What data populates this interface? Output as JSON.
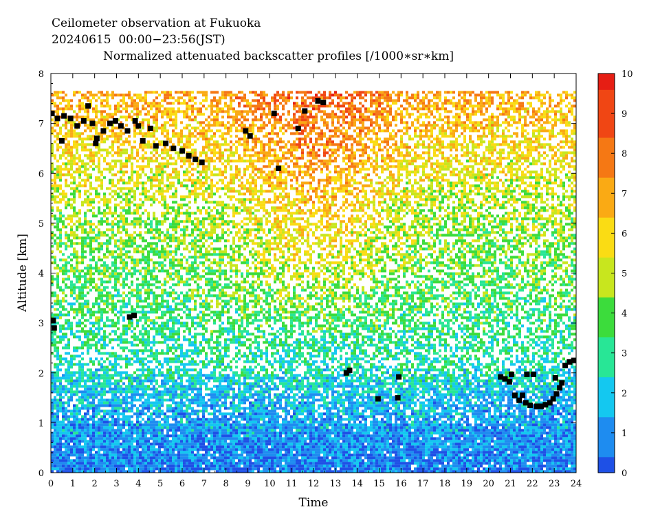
{
  "header": {
    "line1": "Ceilometer observation at Fukuoka",
    "line2": "20240615  00:00−23:56(JST)",
    "line3": "Normalized attenuated backscatter profiles [/1000∗sr∗km]"
  },
  "chart_data": {
    "type": "heatmap",
    "xlabel": "Time",
    "ylabel": "Altitude [km]",
    "xlim": [
      0,
      24
    ],
    "ylim": [
      0,
      8
    ],
    "x_ticks": [
      0,
      1,
      2,
      3,
      4,
      5,
      6,
      7,
      8,
      9,
      10,
      11,
      12,
      13,
      14,
      15,
      16,
      17,
      18,
      19,
      20,
      21,
      22,
      23,
      24
    ],
    "y_ticks": [
      0,
      1,
      2,
      3,
      4,
      5,
      6,
      7,
      8
    ],
    "colorbar": {
      "range": [
        0,
        10
      ],
      "ticks": [
        0,
        1,
        2,
        3,
        4,
        5,
        6,
        7,
        8,
        9,
        10
      ],
      "colors": [
        "#1e50e6",
        "#1e8cf0",
        "#14c8f0",
        "#28e696",
        "#3cdc3c",
        "#c8e61e",
        "#fadc14",
        "#faaa14",
        "#f57814",
        "#f04614",
        "#e61e14"
      ]
    },
    "data_top_km": 7.65,
    "profile_regimes": [
      {
        "altitude_km": 0.0,
        "level": 1.0
      },
      {
        "altitude_km": 0.6,
        "level": 1.3
      },
      {
        "altitude_km": 1.4,
        "level": 1.8
      },
      {
        "altitude_km": 2.2,
        "level": 2.8
      },
      {
        "altitude_km": 3.5,
        "level": 3.6
      },
      {
        "altitude_km": 5.0,
        "level": 4.5
      },
      {
        "altitude_km": 7.6,
        "level": 7.0
      }
    ],
    "cloud_base_points": [
      {
        "time": 0.05,
        "alt": 7.2
      },
      {
        "time": 0.3,
        "alt": 7.1
      },
      {
        "time": 0.6,
        "alt": 7.15
      },
      {
        "time": 0.9,
        "alt": 7.1
      },
      {
        "time": 1.2,
        "alt": 6.95
      },
      {
        "time": 1.5,
        "alt": 7.05
      },
      {
        "time": 1.7,
        "alt": 7.35
      },
      {
        "time": 1.9,
        "alt": 7.0
      },
      {
        "time": 2.1,
        "alt": 6.7
      },
      {
        "time": 2.4,
        "alt": 6.85
      },
      {
        "time": 2.7,
        "alt": 7.0
      },
      {
        "time": 2.95,
        "alt": 7.05
      },
      {
        "time": 3.2,
        "alt": 6.95
      },
      {
        "time": 3.5,
        "alt": 6.85
      },
      {
        "time": 3.85,
        "alt": 7.05
      },
      {
        "time": 4.0,
        "alt": 6.95
      },
      {
        "time": 4.2,
        "alt": 6.65
      },
      {
        "time": 4.55,
        "alt": 6.9
      },
      {
        "time": 4.8,
        "alt": 6.55
      },
      {
        "time": 5.25,
        "alt": 6.6
      },
      {
        "time": 5.6,
        "alt": 6.5
      },
      {
        "time": 6.0,
        "alt": 6.45
      },
      {
        "time": 6.3,
        "alt": 6.35
      },
      {
        "time": 6.6,
        "alt": 6.28
      },
      {
        "time": 6.9,
        "alt": 6.22
      },
      {
        "time": 0.5,
        "alt": 6.65
      },
      {
        "time": 2.05,
        "alt": 6.6
      },
      {
        "time": 8.9,
        "alt": 6.85
      },
      {
        "time": 9.1,
        "alt": 6.75
      },
      {
        "time": 10.2,
        "alt": 7.2
      },
      {
        "time": 10.4,
        "alt": 6.1
      },
      {
        "time": 11.3,
        "alt": 6.9
      },
      {
        "time": 11.6,
        "alt": 7.25
      },
      {
        "time": 12.2,
        "alt": 7.45
      },
      {
        "time": 12.45,
        "alt": 7.42
      },
      {
        "time": 0.1,
        "alt": 3.05
      },
      {
        "time": 0.15,
        "alt": 2.9
      },
      {
        "time": 3.6,
        "alt": 3.12
      },
      {
        "time": 3.8,
        "alt": 3.15
      },
      {
        "time": 13.5,
        "alt": 2.0
      },
      {
        "time": 13.65,
        "alt": 2.05
      },
      {
        "time": 14.95,
        "alt": 1.48
      },
      {
        "time": 15.85,
        "alt": 1.5
      },
      {
        "time": 15.9,
        "alt": 1.92
      },
      {
        "time": 20.55,
        "alt": 1.92
      },
      {
        "time": 20.75,
        "alt": 1.88
      },
      {
        "time": 20.95,
        "alt": 1.82
      },
      {
        "time": 21.05,
        "alt": 1.97
      },
      {
        "time": 21.2,
        "alt": 1.55
      },
      {
        "time": 21.4,
        "alt": 1.45
      },
      {
        "time": 21.55,
        "alt": 1.55
      },
      {
        "time": 21.7,
        "alt": 1.4
      },
      {
        "time": 21.75,
        "alt": 1.97
      },
      {
        "time": 21.9,
        "alt": 1.35
      },
      {
        "time": 22.05,
        "alt": 1.97
      },
      {
        "time": 22.2,
        "alt": 1.33
      },
      {
        "time": 22.4,
        "alt": 1.33
      },
      {
        "time": 22.6,
        "alt": 1.36
      },
      {
        "time": 22.8,
        "alt": 1.4
      },
      {
        "time": 22.95,
        "alt": 1.48
      },
      {
        "time": 23.1,
        "alt": 1.58
      },
      {
        "time": 23.25,
        "alt": 1.7
      },
      {
        "time": 23.35,
        "alt": 1.8
      },
      {
        "time": 23.05,
        "alt": 1.9
      },
      {
        "time": 23.5,
        "alt": 2.15
      },
      {
        "time": 23.7,
        "alt": 2.22
      },
      {
        "time": 23.9,
        "alt": 2.25
      }
    ]
  }
}
